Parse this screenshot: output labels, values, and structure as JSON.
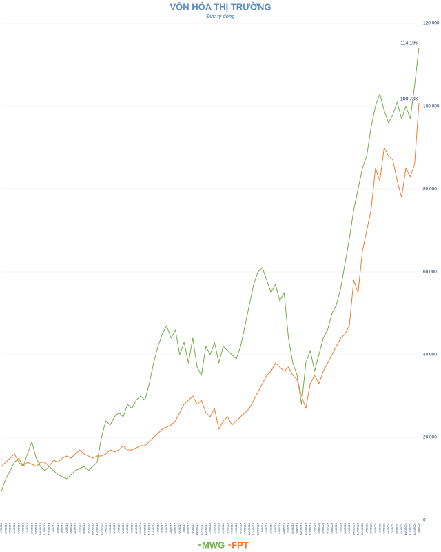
{
  "chart_data": {
    "type": "line",
    "title": "VỐN HÓA THỊ TRƯỜNG",
    "subtitle": "Đvt: tỷ đồng",
    "categories": [
      "1/2/2014",
      "2/3/2014",
      "3/3/2014",
      "4/1/2014",
      "5/2/2014",
      "6/2/2014",
      "7/1/2014",
      "8/1/2014",
      "9/2/2014",
      "10/1/2014",
      "11/3/2014",
      "12/1/2014",
      "1/2/2015",
      "2/2/2015",
      "3/2/2015",
      "4/1/2015",
      "5/4/2015",
      "6/1/2015",
      "7/1/2015",
      "8/3/2015",
      "9/1/2015",
      "10/1/2015",
      "11/2/2015",
      "12/1/2015",
      "1/4/2016",
      "2/1/2016",
      "3/1/2016",
      "4/1/2016",
      "5/3/2016",
      "6/1/2016",
      "7/1/2016",
      "8/1/2016",
      "9/1/2016",
      "10/3/2016",
      "11/1/2016",
      "12/1/2016",
      "1/3/2017",
      "2/1/2017",
      "3/1/2017",
      "4/3/2017",
      "5/2/2017",
      "6/1/2017",
      "7/3/2017",
      "8/1/2017",
      "9/1/2017",
      "10/2/2017",
      "11/1/2017",
      "12/1/2017",
      "1/2/2018",
      "2/1/2018",
      "3/1/2018",
      "4/2/2018",
      "5/2/2018",
      "6/1/2018",
      "7/2/2018",
      "8/1/2018",
      "9/4/2018",
      "10/1/2018",
      "11/1/2018",
      "12/3/2018",
      "1/2/2019",
      "2/1/2019",
      "3/1/2019",
      "4/1/2019",
      "5/2/2019",
      "6/3/2019",
      "7/1/2019",
      "8/1/2019",
      "9/3/2019",
      "10/1/2019",
      "11/1/2019",
      "12/2/2019",
      "1/2/2020",
      "2/3/2020",
      "3/2/2020",
      "4/1/2020",
      "5/4/2020",
      "6/1/2020",
      "7/1/2020",
      "8/3/2020",
      "9/1/2020",
      "10/1/2020",
      "11/2/2020",
      "12/1/2020",
      "1/4/2021",
      "2/1/2021",
      "3/1/2021",
      "4/1/2021",
      "5/4/2021",
      "6/1/2021",
      "7/1/2021",
      "8/2/2021",
      "9/1/2021",
      "10/1/2021",
      "11/1/2021",
      "12/1/2021",
      "1/4/2022"
    ],
    "series": [
      {
        "name": "MWG",
        "color": "#70ad47",
        "values": [
          7000,
          10000,
          12000,
          14000,
          15000,
          13000,
          16000,
          19000,
          15000,
          13000,
          12000,
          13000,
          12000,
          11000,
          10500,
          10000,
          11000,
          12000,
          12500,
          13000,
          12000,
          13000,
          14000,
          20000,
          24000,
          23000,
          25000,
          26000,
          25000,
          28000,
          27000,
          29000,
          30000,
          29000,
          33000,
          38000,
          42000,
          45000,
          47000,
          44000,
          46000,
          40000,
          43000,
          38000,
          44000,
          37000,
          35000,
          42000,
          40000,
          43000,
          38000,
          42000,
          41000,
          40000,
          39000,
          42000,
          47000,
          52000,
          57000,
          60000,
          61000,
          58000,
          55000,
          57000,
          53000,
          55000,
          44000,
          38000,
          35000,
          28000,
          38000,
          41000,
          36000,
          40000,
          44000,
          46000,
          50000,
          52000,
          56000,
          62000,
          68000,
          75000,
          80000,
          85000,
          88000,
          95000,
          100000,
          103000,
          99000,
          96000,
          98000,
          101000,
          97000,
          100000,
          97000,
          105000,
          114196
        ],
        "value_labels": [
          null,
          null,
          null,
          null,
          null,
          null,
          null,
          null,
          null,
          null,
          null,
          null,
          null,
          null,
          null,
          null,
          null,
          null,
          null,
          null,
          null,
          null,
          null,
          null,
          null,
          null,
          null,
          null,
          null,
          null,
          null,
          null,
          null,
          null,
          null,
          null,
          null,
          null,
          null,
          null,
          null,
          null,
          null,
          null,
          null,
          null,
          null,
          null,
          null,
          null,
          null,
          null,
          null,
          null,
          null,
          null,
          null,
          null,
          null,
          null,
          null,
          null,
          null,
          null,
          null,
          null,
          null,
          null,
          null,
          null,
          null,
          null,
          null,
          null,
          null,
          null,
          null,
          null,
          null,
          null,
          null,
          null,
          null,
          null,
          null,
          null,
          null,
          null,
          null,
          null,
          null,
          null,
          null,
          null,
          null,
          null,
          "114.196"
        ]
      },
      {
        "name": "FPT",
        "color": "#ed7d31",
        "values": [
          13000,
          14000,
          15000,
          16000,
          14000,
          13000,
          14000,
          13500,
          13000,
          14000,
          14000,
          13000,
          14500,
          14000,
          15000,
          15500,
          15000,
          16000,
          17000,
          16000,
          15500,
          15000,
          15500,
          15500,
          16000,
          17000,
          16500,
          17000,
          18000,
          17000,
          17000,
          17500,
          18000,
          18000,
          19000,
          20000,
          21000,
          22000,
          22500,
          23000,
          24000,
          26000,
          28000,
          29000,
          30000,
          28000,
          29000,
          26000,
          25000,
          27000,
          22000,
          24000,
          25000,
          23000,
          24000,
          25000,
          26000,
          27000,
          29000,
          31000,
          33000,
          35000,
          36000,
          38000,
          37000,
          36000,
          37000,
          35000,
          34000,
          30000,
          27000,
          33000,
          35000,
          33000,
          36000,
          38000,
          40000,
          42000,
          44000,
          45000,
          47000,
          58000,
          55000,
          65000,
          70000,
          75000,
          85000,
          82000,
          90000,
          88000,
          87000,
          82000,
          78000,
          85000,
          83000,
          86000,
          100738
        ],
        "value_labels": [
          null,
          null,
          null,
          null,
          null,
          null,
          null,
          null,
          null,
          null,
          null,
          null,
          null,
          null,
          null,
          null,
          null,
          null,
          null,
          null,
          null,
          null,
          null,
          null,
          null,
          null,
          null,
          null,
          null,
          null,
          null,
          null,
          null,
          null,
          null,
          null,
          null,
          null,
          null,
          null,
          null,
          null,
          null,
          null,
          null,
          null,
          null,
          null,
          null,
          null,
          null,
          null,
          null,
          null,
          null,
          null,
          null,
          null,
          null,
          null,
          null,
          null,
          null,
          null,
          null,
          null,
          null,
          null,
          null,
          null,
          null,
          null,
          null,
          null,
          null,
          null,
          null,
          null,
          null,
          null,
          null,
          null,
          null,
          null,
          null,
          null,
          null,
          null,
          null,
          null,
          null,
          null,
          null,
          null,
          null,
          null,
          "100.738"
        ]
      }
    ],
    "ylim": [
      0,
      120000
    ],
    "yticks": [
      0,
      {
        "value": 20000,
        "label": "20.000"
      },
      {
        "value": 40000,
        "label": "40.000"
      },
      {
        "value": 60000,
        "label": "60.000"
      },
      {
        "value": 80000,
        "label": "80.000"
      },
      {
        "value": 100000,
        "label": "100.000"
      },
      {
        "value": 120000,
        "label": "120.000"
      }
    ],
    "grid": true,
    "legend": "bottom"
  }
}
